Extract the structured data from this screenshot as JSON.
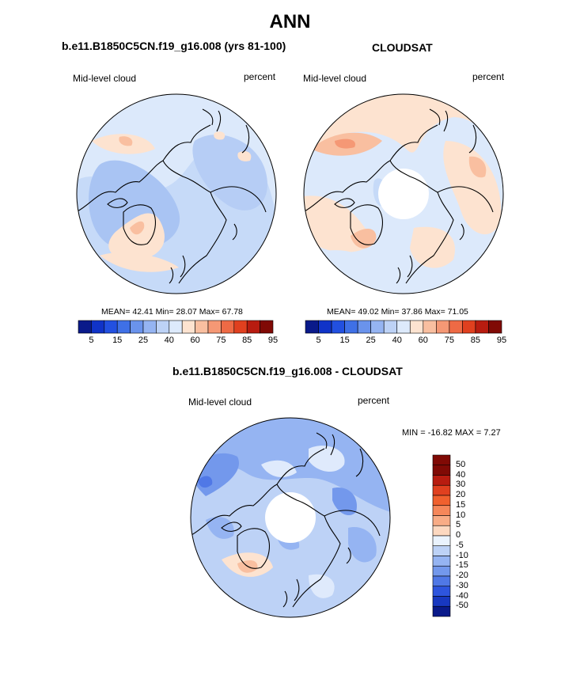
{
  "main_title": "ANN",
  "panels": [
    {
      "title": "b.e11.B1850C5CN.f19_g16.008 (yrs 81-100)",
      "left_label": "Mid-level cloud",
      "right_label": "percent",
      "stats": "MEAN=  42.41  Min=  28.07  Max=  67.78",
      "colorbar_ticks": [
        "5",
        "15",
        "25",
        "40",
        "60",
        "75",
        "85",
        "95"
      ]
    },
    {
      "title": "CLOUDSAT",
      "left_label": "Mid-level cloud",
      "right_label": "percent",
      "stats": "MEAN=  49.02  Min=  37.86  Max=  71.05",
      "colorbar_ticks": [
        "5",
        "15",
        "25",
        "40",
        "60",
        "75",
        "85",
        "95"
      ]
    }
  ],
  "diff_panel": {
    "title": "b.e11.B1850C5CN.f19_g16.008 - CLOUDSAT",
    "left_label": "Mid-level cloud",
    "right_label": "percent",
    "stats": "MIN = -16.82 MAX =  7.27",
    "colorbar_ticks": [
      "50",
      "40",
      "30",
      "20",
      "15",
      "10",
      "5",
      "0",
      "-5",
      "-10",
      "-15",
      "-20",
      "-30",
      "-40",
      "-50"
    ]
  },
  "colors": {
    "abs_scale": [
      "#0a1a8a",
      "#1033c8",
      "#2250e0",
      "#3f70e6",
      "#6a93ec",
      "#95b4f2",
      "#bdd2f6",
      "#ddeafc",
      "#fde3d0",
      "#f9bfa0",
      "#f59875",
      "#ee6a45",
      "#e0401f",
      "#b81c10",
      "#800a05"
    ],
    "diff_scale": [
      "#800a05",
      "#b81c10",
      "#e0401f",
      "#f0602e",
      "#f5875a",
      "#f8ac86",
      "#fcd8c0",
      "#eaf3fd",
      "#bdd2f6",
      "#95b4f2",
      "#7398ec",
      "#5078e6",
      "#2e55de",
      "#1838c0",
      "#0a1a8a"
    ]
  }
}
